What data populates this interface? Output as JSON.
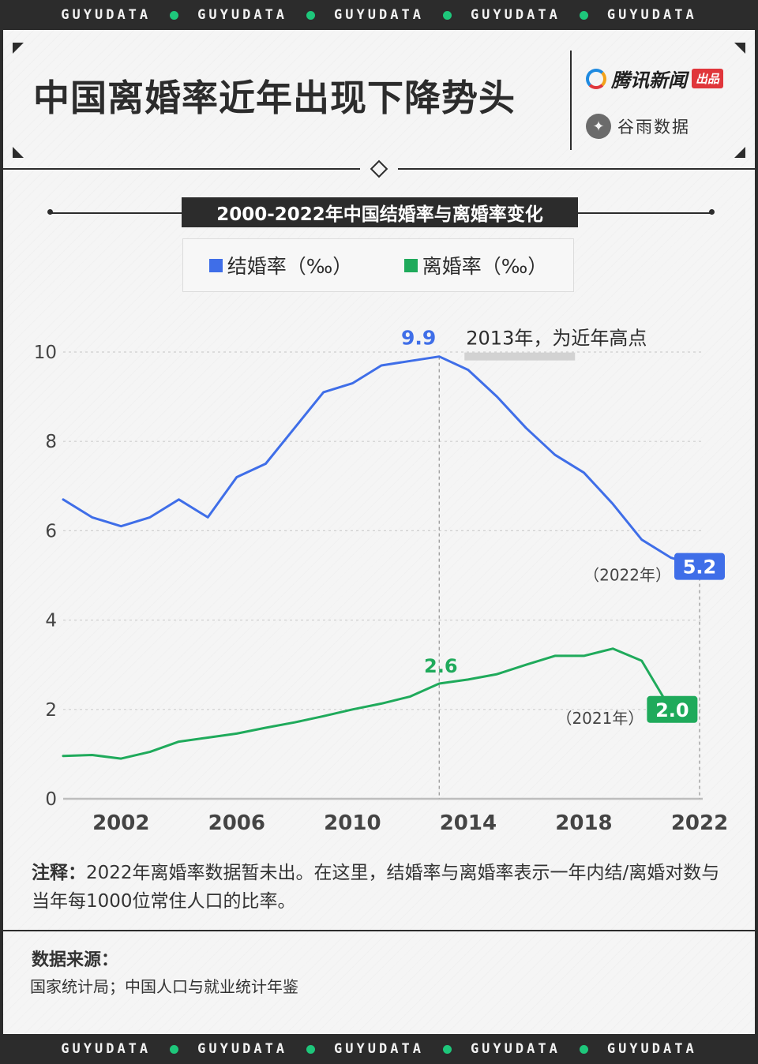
{
  "band": {
    "text": "GUYUDATA",
    "dot_color": "#1ec77b"
  },
  "header": {
    "title": "中国离婚率近年出现下降势头",
    "brand_tencent": "腾讯新闻",
    "brand_tencent_badge": "出品",
    "brand_guyu": "谷雨数据",
    "brand_guyu_icon": "bird-icon"
  },
  "chart_data": {
    "type": "line",
    "title": "2000-2022年中国结婚率与离婚率变化",
    "xlabel": "",
    "ylabel": "",
    "x": [
      2000,
      2001,
      2002,
      2003,
      2004,
      2005,
      2006,
      2007,
      2008,
      2009,
      2010,
      2011,
      2012,
      2013,
      2014,
      2015,
      2016,
      2017,
      2018,
      2019,
      2020,
      2021,
      2022
    ],
    "xticks": [
      2002,
      2006,
      2010,
      2014,
      2018,
      2022
    ],
    "yticks": [
      0,
      2,
      4,
      6,
      8,
      10
    ],
    "ylim": [
      0,
      10
    ],
    "grid": "horizontal dashed",
    "legend_position": "top-center",
    "series": [
      {
        "name": "结婚率（‰）",
        "color": "#3f6ee8",
        "values": [
          6.7,
          6.3,
          6.1,
          6.3,
          6.7,
          6.3,
          7.2,
          7.5,
          8.3,
          9.1,
          9.3,
          9.7,
          9.8,
          9.9,
          9.6,
          9.0,
          8.3,
          7.7,
          7.3,
          6.6,
          5.8,
          5.4,
          5.2
        ]
      },
      {
        "name": "离婚率（‰）",
        "color": "#1faa5b",
        "values": [
          0.96,
          0.98,
          0.9,
          1.05,
          1.28,
          1.37,
          1.46,
          1.59,
          1.71,
          1.85,
          2.0,
          2.13,
          2.29,
          2.58,
          2.67,
          2.79,
          3.0,
          3.2,
          3.2,
          3.36,
          3.09,
          2.0,
          null
        ]
      }
    ],
    "annotations": {
      "peak_value": "9.9",
      "peak_text": "2013年，为近年高点",
      "marriage_end_value": "5.2",
      "marriage_end_year": "（2022年）",
      "divorce_mid_value": "2.6",
      "divorce_end_value": "2.0",
      "divorce_end_year": "（2021年）"
    }
  },
  "note": {
    "label": "注释：",
    "text": "2022年离婚率数据暂未出。在这里，结婚率与离婚率表示一年内结/离婚对数与当年每1000位常住人口的比率。"
  },
  "source": {
    "title": "数据来源：",
    "text": "国家统计局；中国人口与就业统计年鉴"
  }
}
